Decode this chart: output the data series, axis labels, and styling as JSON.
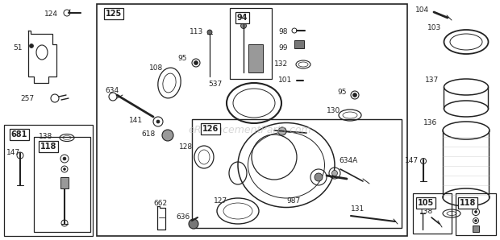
{
  "bg_color": "#ffffff",
  "line_color": "#222222",
  "fig_width": 6.2,
  "fig_height": 2.98,
  "dpi": 100,
  "watermark": "eReplacementParts.com"
}
